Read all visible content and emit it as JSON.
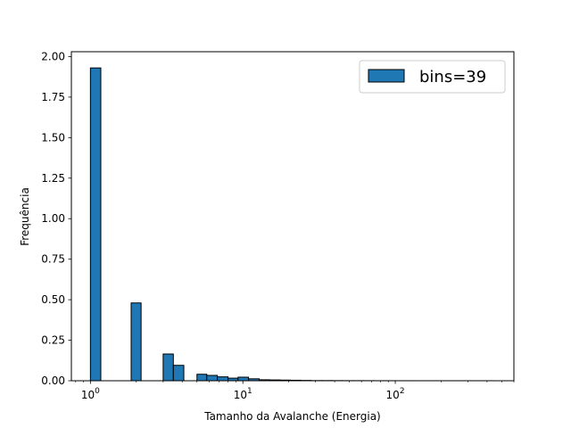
{
  "chart_data": {
    "type": "bar",
    "title": "",
    "xlabel": "Tamanho da Avalanche (Energia)",
    "ylabel": "Frequência",
    "x_scale": "log",
    "xlim": [
      0.75,
      600
    ],
    "ylim": [
      0,
      2.03
    ],
    "grid": false,
    "legend_position": "top-right",
    "x_ticks": [
      {
        "value": 1,
        "base": "10",
        "exp": "0"
      },
      {
        "value": 10,
        "base": "10",
        "exp": "1"
      },
      {
        "value": 100,
        "base": "10",
        "exp": "2"
      }
    ],
    "y_ticks": [
      "0.00",
      "0.25",
      "0.50",
      "0.75",
      "1.00",
      "1.25",
      "1.50",
      "1.75",
      "2.00"
    ],
    "series": [
      {
        "name": "bins=39",
        "color": "#1f77b4",
        "edge_color": "#000000",
        "bins": [
          {
            "x0": 1.0,
            "x1": 1.17,
            "value": 1.93
          },
          {
            "x0": 1.85,
            "x1": 2.15,
            "value": 0.48
          },
          {
            "x0": 3.0,
            "x1": 3.5,
            "value": 0.165
          },
          {
            "x0": 3.5,
            "x1": 4.1,
            "value": 0.095
          },
          {
            "x0": 5.0,
            "x1": 5.8,
            "value": 0.04
          },
          {
            "x0": 5.8,
            "x1": 6.8,
            "value": 0.033
          },
          {
            "x0": 6.8,
            "x1": 8.0,
            "value": 0.024
          },
          {
            "x0": 8.0,
            "x1": 9.3,
            "value": 0.016
          },
          {
            "x0": 9.3,
            "x1": 10.9,
            "value": 0.022
          },
          {
            "x0": 10.9,
            "x1": 12.8,
            "value": 0.012
          },
          {
            "x0": 12.8,
            "x1": 15.0,
            "value": 0.006
          },
          {
            "x0": 15.0,
            "x1": 17.5,
            "value": 0.005
          },
          {
            "x0": 17.5,
            "x1": 20.5,
            "value": 0.004
          },
          {
            "x0": 20.5,
            "x1": 24.0,
            "value": 0.003
          },
          {
            "x0": 24.0,
            "x1": 28.0,
            "value": 0.002
          },
          {
            "x0": 28.0,
            "x1": 33.0,
            "value": 0.001
          },
          {
            "x0": 33.0,
            "x1": 38.5,
            "value": 0.001
          },
          {
            "x0": 38.5,
            "x1": 45.0,
            "value": 0.0008
          },
          {
            "x0": 45.0,
            "x1": 53.0,
            "value": 0.0006
          },
          {
            "x0": 53.0,
            "x1": 62.0,
            "value": 0.0005
          },
          {
            "x0": 62.0,
            "x1": 72.0,
            "value": 0.0004
          },
          {
            "x0": 72.0,
            "x1": 85.0,
            "value": 0.0003
          },
          {
            "x0": 85.0,
            "x1": 100.0,
            "value": 0.0003
          },
          {
            "x0": 100.0,
            "x1": 117.0,
            "value": 0.0002
          },
          {
            "x0": 117.0,
            "x1": 137.0,
            "value": 0.0002
          },
          {
            "x0": 137.0,
            "x1": 160.0,
            "value": 0.0001
          },
          {
            "x0": 160.0,
            "x1": 188.0,
            "value": 0.0001
          },
          {
            "x0": 188.0,
            "x1": 220.0,
            "value": 0.0001
          },
          {
            "x0": 220.0,
            "x1": 258.0,
            "value": 0.0001
          },
          {
            "x0": 258.0,
            "x1": 302.0,
            "value": 0.0001
          },
          {
            "x0": 302.0,
            "x1": 354.0,
            "value": 0.0001
          },
          {
            "x0": 354.0,
            "x1": 415.0,
            "value": 0.0001
          },
          {
            "x0": 415.0,
            "x1": 450.0,
            "value": 0.0001
          }
        ]
      }
    ]
  }
}
